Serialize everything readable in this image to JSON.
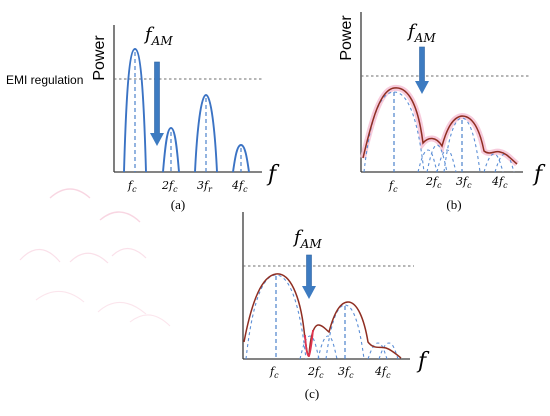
{
  "colors": {
    "axis": "#3a3a3a",
    "threshold": "#6e6e6e",
    "peak": "#3b73c4",
    "arrow": "#3d7bc1",
    "envelope": "#8f2e22",
    "highlight": "#e0334f"
  },
  "panels": [
    {
      "id": "a",
      "ylabel": "Power",
      "threshold_label": "EMI regulation",
      "arrow_label": "f",
      "arrow_label_sub": "AM",
      "x_axis_symbol": "f",
      "ticks": [
        {
          "text": "f",
          "sub": "c"
        },
        {
          "text": "2f",
          "sub": "c"
        },
        {
          "text": "3f",
          "sub": "r"
        },
        {
          "text": "4f",
          "sub": "c"
        }
      ],
      "caption": "(a)"
    },
    {
      "id": "b",
      "ylabel": "Power",
      "arrow_label": "f",
      "arrow_label_sub": "AM",
      "x_axis_symbol": "f",
      "ticks": [
        {
          "text": "f",
          "sub": "c"
        },
        {
          "text": "2f",
          "sub": "c"
        },
        {
          "text": "3f",
          "sub": "c"
        },
        {
          "text": "4f",
          "sub": "c"
        }
      ],
      "caption": "(b)"
    },
    {
      "id": "c",
      "arrow_label": "f",
      "arrow_label_sub": "AM",
      "x_axis_symbol": "f",
      "ticks": [
        {
          "text": "f",
          "sub": "c"
        },
        {
          "text": "2f",
          "sub": "c"
        },
        {
          "text": "3f",
          "sub": "c"
        },
        {
          "text": "4f",
          "sub": "c"
        }
      ],
      "caption": "(c)"
    }
  ]
}
